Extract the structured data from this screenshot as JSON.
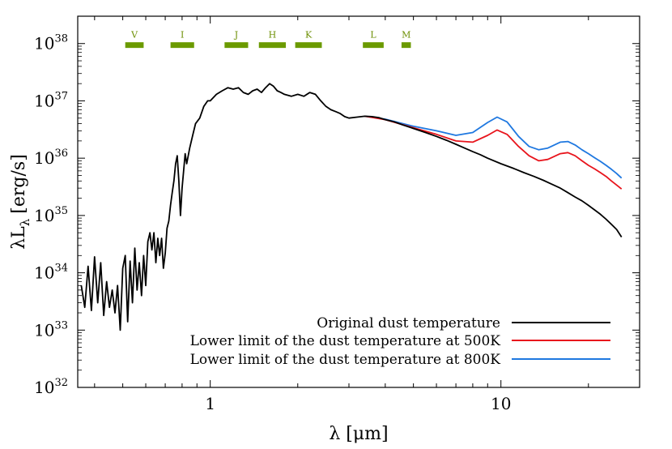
{
  "chart_data": {
    "type": "line",
    "xlabel": "λ [μm]",
    "ylabel_main": "λL",
    "ylabel_sub": "λ",
    "ylabel_unit": "[erg/s]",
    "x_scale": "log",
    "y_scale": "log",
    "xlim": [
      0.35,
      30
    ],
    "ylim": [
      1e+32,
      3e+38
    ],
    "x_ticks": [
      {
        "value": 1,
        "label": "1"
      },
      {
        "value": 10,
        "label": "10"
      }
    ],
    "y_ticks": [
      {
        "value": 1e+32,
        "base": "10",
        "exp": "32"
      },
      {
        "value": 1e+33,
        "base": "10",
        "exp": "33"
      },
      {
        "value": 1e+34,
        "base": "10",
        "exp": "34"
      },
      {
        "value": 1e+35,
        "base": "10",
        "exp": "35"
      },
      {
        "value": 1e+36,
        "base": "10",
        "exp": "36"
      },
      {
        "value": 1e+37,
        "base": "10",
        "exp": "37"
      },
      {
        "value": 1e+38,
        "base": "10",
        "exp": "38"
      }
    ],
    "grid": false,
    "legend_position": "bottom-right",
    "photometric_bands": [
      {
        "label": "V",
        "start": 0.51,
        "end": 0.59,
        "y": 9.4e+37
      },
      {
        "label": "I",
        "start": 0.73,
        "end": 0.88,
        "y": 9.4e+37
      },
      {
        "label": "J",
        "start": 1.12,
        "end": 1.35,
        "y": 9.4e+37
      },
      {
        "label": "H",
        "start": 1.47,
        "end": 1.82,
        "y": 9.4e+37
      },
      {
        "label": "K",
        "start": 1.96,
        "end": 2.42,
        "y": 9.4e+37
      },
      {
        "label": "L",
        "start": 3.35,
        "end": 3.95,
        "y": 9.4e+37
      },
      {
        "label": "M",
        "start": 4.55,
        "end": 4.9,
        "y": 9.4e+37
      }
    ],
    "base_sed": [
      [
        0.36,
        6e+33
      ],
      [
        0.37,
        2.5e+33
      ],
      [
        0.38,
        1.3e+34
      ],
      [
        0.39,
        2.2e+33
      ],
      [
        0.4,
        1.9e+34
      ],
      [
        0.41,
        3e+33
      ],
      [
        0.42,
        1.5e+34
      ],
      [
        0.43,
        1.8e+33
      ],
      [
        0.44,
        7e+33
      ],
      [
        0.45,
        2.5e+33
      ],
      [
        0.46,
        5e+33
      ],
      [
        0.47,
        2e+33
      ],
      [
        0.48,
        6e+33
      ],
      [
        0.49,
        1e+33
      ],
      [
        0.5,
        1.2e+34
      ],
      [
        0.51,
        2e+34
      ],
      [
        0.52,
        1.4e+33
      ],
      [
        0.53,
        1.6e+34
      ],
      [
        0.54,
        3e+33
      ],
      [
        0.55,
        2.7e+34
      ],
      [
        0.56,
        5e+33
      ],
      [
        0.57,
        1.5e+34
      ],
      [
        0.58,
        4e+33
      ],
      [
        0.59,
        2e+34
      ],
      [
        0.6,
        6e+33
      ],
      [
        0.61,
        3.5e+34
      ],
      [
        0.62,
        5e+34
      ],
      [
        0.63,
        2.5e+34
      ],
      [
        0.64,
        5e+34
      ],
      [
        0.65,
        1.5e+34
      ],
      [
        0.66,
        4e+34
      ],
      [
        0.67,
        2e+34
      ],
      [
        0.68,
        4e+34
      ],
      [
        0.69,
        1.2e+34
      ],
      [
        0.7,
        2.2e+34
      ],
      [
        0.71,
        6e+34
      ],
      [
        0.72,
        8e+34
      ],
      [
        0.73,
        1.5e+35
      ],
      [
        0.74,
        2.5e+35
      ],
      [
        0.75,
        4e+35
      ],
      [
        0.76,
        8e+35
      ],
      [
        0.77,
        1.1e+36
      ],
      [
        0.78,
        4e+35
      ],
      [
        0.79,
        1e+35
      ],
      [
        0.8,
        3e+35
      ],
      [
        0.81,
        6e+35
      ],
      [
        0.82,
        1.2e+36
      ],
      [
        0.83,
        8e+35
      ],
      [
        0.85,
        1.5e+36
      ],
      [
        0.87,
        2.5e+36
      ],
      [
        0.89,
        4e+36
      ],
      [
        0.92,
        5e+36
      ],
      [
        0.95,
        8e+36
      ],
      [
        0.98,
        1e+37
      ],
      [
        1.0,
        1e+37
      ],
      [
        1.05,
        1.3e+37
      ],
      [
        1.1,
        1.5e+37
      ],
      [
        1.15,
        1.7e+37
      ],
      [
        1.2,
        1.6e+37
      ],
      [
        1.25,
        1.7e+37
      ],
      [
        1.3,
        1.4e+37
      ],
      [
        1.35,
        1.3e+37
      ],
      [
        1.4,
        1.5e+37
      ],
      [
        1.45,
        1.6e+37
      ],
      [
        1.5,
        1.4e+37
      ],
      [
        1.55,
        1.7e+37
      ],
      [
        1.6,
        2e+37
      ],
      [
        1.65,
        1.8e+37
      ],
      [
        1.7,
        1.5e+37
      ],
      [
        1.75,
        1.4e+37
      ],
      [
        1.8,
        1.3e+37
      ],
      [
        1.9,
        1.2e+37
      ],
      [
        2.0,
        1.3e+37
      ],
      [
        2.1,
        1.2e+37
      ],
      [
        2.2,
        1.4e+37
      ],
      [
        2.3,
        1.3e+37
      ],
      [
        2.4,
        1e+37
      ],
      [
        2.5,
        8e+36
      ],
      [
        2.6,
        7e+36
      ],
      [
        2.7,
        6.5e+36
      ],
      [
        2.8,
        6e+36
      ],
      [
        2.9,
        5.3e+36
      ],
      [
        3.0,
        5e+36
      ],
      [
        3.2,
        5.2e+36
      ],
      [
        3.4,
        5.4e+36
      ],
      [
        3.6,
        5.3e+36
      ],
      [
        3.8,
        5.1e+36
      ],
      [
        4.0,
        4.7e+36
      ],
      [
        4.3,
        4.3e+36
      ],
      [
        4.6,
        3.8e+36
      ],
      [
        5.0,
        3.3e+36
      ],
      [
        5.5,
        2.8e+36
      ],
      [
        6.0,
        2.4e+36
      ],
      [
        6.5,
        2.05e+36
      ],
      [
        7.0,
        1.75e+36
      ],
      [
        7.5,
        1.5e+36
      ],
      [
        8.0,
        1.3e+36
      ],
      [
        8.5,
        1.15e+36
      ],
      [
        9.0,
        1e+36
      ],
      [
        10.0,
        8e+35
      ],
      [
        11.0,
        6.7e+35
      ],
      [
        12.0,
        5.6e+35
      ],
      [
        13.0,
        4.8e+35
      ],
      [
        14.0,
        4.1e+35
      ],
      [
        15.0,
        3.5e+35
      ],
      [
        16.0,
        3e+35
      ],
      [
        17.0,
        2.5e+35
      ],
      [
        18.0,
        2.1e+35
      ],
      [
        19.0,
        1.8e+35
      ],
      [
        20.0,
        1.5e+35
      ],
      [
        21.0,
        1.25e+35
      ],
      [
        22.0,
        1.05e+35
      ],
      [
        23.0,
        8.6e+34
      ],
      [
        24.0,
        7e+34
      ],
      [
        25.0,
        5.7e+34
      ],
      [
        26.0,
        4.2e+34
      ]
    ],
    "series": [
      {
        "name": "Original dust temperature",
        "color": "#000000",
        "from_x": 0.35,
        "points": []
      },
      {
        "name": "Lower limit of the dust temperature at 500K",
        "color": "#e8141c",
        "from_x": 3.4,
        "points": [
          [
            3.4,
            5.4e+36
          ],
          [
            4.0,
            4.7e+36
          ],
          [
            5.0,
            3.4e+36
          ],
          [
            6.0,
            2.6e+36
          ],
          [
            7.0,
            2e+36
          ],
          [
            8.0,
            1.9e+36
          ],
          [
            9.0,
            2.5e+36
          ],
          [
            9.7,
            3.1e+36
          ],
          [
            10.5,
            2.6e+36
          ],
          [
            11.5,
            1.6e+36
          ],
          [
            12.5,
            1.1e+36
          ],
          [
            13.5,
            9e+35
          ],
          [
            14.5,
            9.5e+35
          ],
          [
            16.0,
            1.2e+36
          ],
          [
            17.0,
            1.25e+36
          ],
          [
            18.0,
            1.1e+36
          ],
          [
            19.0,
            9e+35
          ],
          [
            20.0,
            7.5e+35
          ],
          [
            21.0,
            6.5e+35
          ],
          [
            22.0,
            5.6e+35
          ],
          [
            23.0,
            4.8e+35
          ],
          [
            24.0,
            4e+35
          ],
          [
            25.0,
            3.4e+35
          ],
          [
            26.0,
            2.9e+35
          ]
        ]
      },
      {
        "name": "Lower limit of the dust temperature at 800K",
        "color": "#1f78e0",
        "from_x": 3.4,
        "points": [
          [
            3.4,
            5.4e+36
          ],
          [
            4.0,
            4.8e+36
          ],
          [
            5.0,
            3.6e+36
          ],
          [
            6.0,
            3e+36
          ],
          [
            7.0,
            2.5e+36
          ],
          [
            8.0,
            2.8e+36
          ],
          [
            9.0,
            4.2e+36
          ],
          [
            9.7,
            5.2e+36
          ],
          [
            10.5,
            4.3e+36
          ],
          [
            11.5,
            2.4e+36
          ],
          [
            12.5,
            1.6e+36
          ],
          [
            13.5,
            1.4e+36
          ],
          [
            14.5,
            1.5e+36
          ],
          [
            16.0,
            1.9e+36
          ],
          [
            17.0,
            1.95e+36
          ],
          [
            18.0,
            1.7e+36
          ],
          [
            19.0,
            1.4e+36
          ],
          [
            20.0,
            1.2e+36
          ],
          [
            21.0,
            1.02e+36
          ],
          [
            22.0,
            8.8e+35
          ],
          [
            23.0,
            7.5e+35
          ],
          [
            24.0,
            6.4e+35
          ],
          [
            25.0,
            5.4e+35
          ],
          [
            26.0,
            4.5e+35
          ]
        ]
      }
    ],
    "colors": {
      "band": "#6b9a00",
      "axis": "#000000"
    }
  }
}
